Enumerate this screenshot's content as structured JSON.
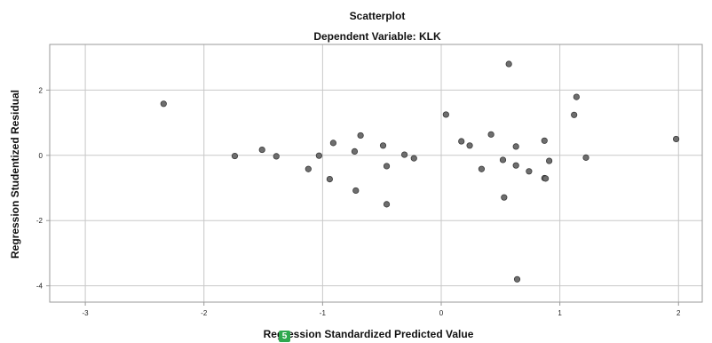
{
  "overlay_badge": "5",
  "chart_data": {
    "type": "scatter",
    "title": "Scatterplot",
    "subtitle": "Dependent Variable: KLK",
    "xlabel": "Regression Standardized Predicted Value",
    "ylabel": "Regression Studentized Residual",
    "xlim": [
      -3.3,
      2.2
    ],
    "ylim": [
      -4.5,
      3.4
    ],
    "xticks": [
      -3,
      -2,
      -1,
      0,
      1,
      2
    ],
    "yticks": [
      -4,
      -2,
      0,
      2
    ],
    "grid": true,
    "points": [
      {
        "x": -2.34,
        "y": 1.58
      },
      {
        "x": -1.74,
        "y": -0.02
      },
      {
        "x": -1.51,
        "y": 0.17
      },
      {
        "x": -1.39,
        "y": -0.03
      },
      {
        "x": -1.12,
        "y": -0.42
      },
      {
        "x": -1.03,
        "y": -0.01
      },
      {
        "x": -0.94,
        "y": -0.73
      },
      {
        "x": -0.91,
        "y": 0.38
      },
      {
        "x": -0.73,
        "y": 0.12
      },
      {
        "x": -0.72,
        "y": -1.08
      },
      {
        "x": -0.68,
        "y": 0.61
      },
      {
        "x": -0.49,
        "y": 0.3
      },
      {
        "x": -0.46,
        "y": -0.33
      },
      {
        "x": -0.46,
        "y": -1.5
      },
      {
        "x": -0.31,
        "y": 0.02
      },
      {
        "x": -0.23,
        "y": -0.09
      },
      {
        "x": 0.04,
        "y": 1.25
      },
      {
        "x": 0.17,
        "y": 0.43
      },
      {
        "x": 0.24,
        "y": 0.3
      },
      {
        "x": 0.34,
        "y": -0.42
      },
      {
        "x": 0.42,
        "y": 0.64
      },
      {
        "x": 0.52,
        "y": -0.14
      },
      {
        "x": 0.53,
        "y": -1.29
      },
      {
        "x": 0.57,
        "y": 2.8
      },
      {
        "x": 0.63,
        "y": -0.31
      },
      {
        "x": 0.63,
        "y": 0.27
      },
      {
        "x": 0.64,
        "y": -3.8
      },
      {
        "x": 0.74,
        "y": -0.49
      },
      {
        "x": 0.87,
        "y": 0.45
      },
      {
        "x": 0.87,
        "y": -0.7
      },
      {
        "x": 0.88,
        "y": -0.71
      },
      {
        "x": 0.91,
        "y": -0.17
      },
      {
        "x": 1.12,
        "y": 1.24
      },
      {
        "x": 1.14,
        "y": 1.79
      },
      {
        "x": 1.22,
        "y": -0.07
      },
      {
        "x": 1.98,
        "y": 0.5
      }
    ]
  }
}
